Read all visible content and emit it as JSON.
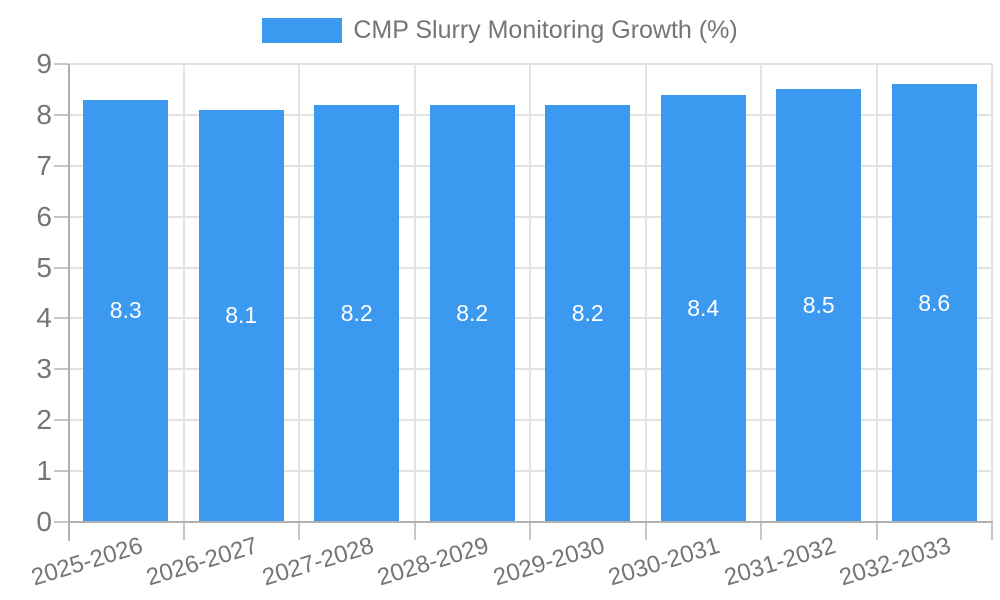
{
  "chart_data": {
    "type": "bar",
    "title": "CMP Slurry Monitoring Growth (%)",
    "legend": [
      "CMP Slurry Monitoring Growth (%)"
    ],
    "legend_position": "top",
    "categories": [
      "2025-2026",
      "2026-2027",
      "2027-2028",
      "2028-2029",
      "2029-2030",
      "2030-2031",
      "2031-2032",
      "2032-2033"
    ],
    "values": [
      8.3,
      8.1,
      8.2,
      8.2,
      8.2,
      8.4,
      8.5,
      8.6
    ],
    "value_labels": [
      "8.3",
      "8.1",
      "8.2",
      "8.2",
      "8.2",
      "8.4",
      "8.5",
      "8.6"
    ],
    "ylim": [
      0,
      9
    ],
    "y_ticks": [
      "0",
      "1",
      "2",
      "3",
      "4",
      "5",
      "6",
      "7",
      "8",
      "9"
    ],
    "grid": true,
    "colors": {
      "bar": "#3B99F0",
      "grid": "#e3e3e3",
      "axis": "#b0b0b0",
      "tick": "#c6c6c6",
      "axis_text": "#757575",
      "value_text": "#ffffff",
      "background": "#ffffff"
    }
  }
}
